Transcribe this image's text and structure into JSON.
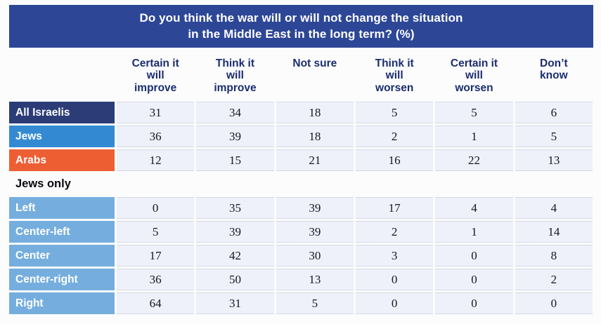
{
  "title": {
    "line1": "Do you think the war will or will not change the situation",
    "line2": "in the Middle East in the long term? (%)"
  },
  "colors": {
    "banner_bg": "#2d4796",
    "banner_text": "#ffffff",
    "header_text": "#1b2d6e",
    "navy": "#2b3c76",
    "blue": "#338ad3",
    "orange": "#ed5e33",
    "light": "#75aede",
    "cell_bg": "#eef1f9",
    "hairline": "#d4d9e4",
    "number_text": "#16161e",
    "section_text": "#0b0b10"
  },
  "chart_data": {
    "type": "table",
    "title": "Do you think the war will or will not change the situation in the Middle East in the long term? (%)",
    "columns": [
      "Certain it will improve",
      "Think it will improve",
      "Not sure",
      "Think it will worsen",
      "Certain it will worsen",
      "Don’t know"
    ],
    "columns_display": [
      "Certain it\nwill\nimprove",
      "Think it\nwill\nimprove",
      "Not sure",
      "Think it\nwill\nworsen",
      "Certain it\nwill\nworsen",
      "Don’t\nknow"
    ],
    "rows": [
      {
        "label": "All Israelis",
        "style": "navy",
        "values": [
          31,
          34,
          18,
          5,
          5,
          6
        ]
      },
      {
        "label": "Jews",
        "style": "blue",
        "values": [
          36,
          39,
          18,
          2,
          1,
          5
        ]
      },
      {
        "label": "Arabs",
        "style": "orange",
        "values": [
          12,
          15,
          21,
          16,
          22,
          13
        ]
      },
      {
        "label": "Jews only",
        "type": "section"
      },
      {
        "label": "Left",
        "style": "light",
        "values": [
          0,
          35,
          39,
          17,
          4,
          4
        ]
      },
      {
        "label": "Center-left",
        "style": "light",
        "values": [
          5,
          39,
          39,
          2,
          1,
          14
        ]
      },
      {
        "label": "Center",
        "style": "light",
        "values": [
          17,
          42,
          30,
          3,
          0,
          8
        ]
      },
      {
        "label": "Center-right",
        "style": "light",
        "values": [
          36,
          50,
          13,
          0,
          0,
          2
        ]
      },
      {
        "label": "Right",
        "style": "light",
        "values": [
          64,
          31,
          5,
          0,
          0,
          0
        ]
      }
    ]
  }
}
